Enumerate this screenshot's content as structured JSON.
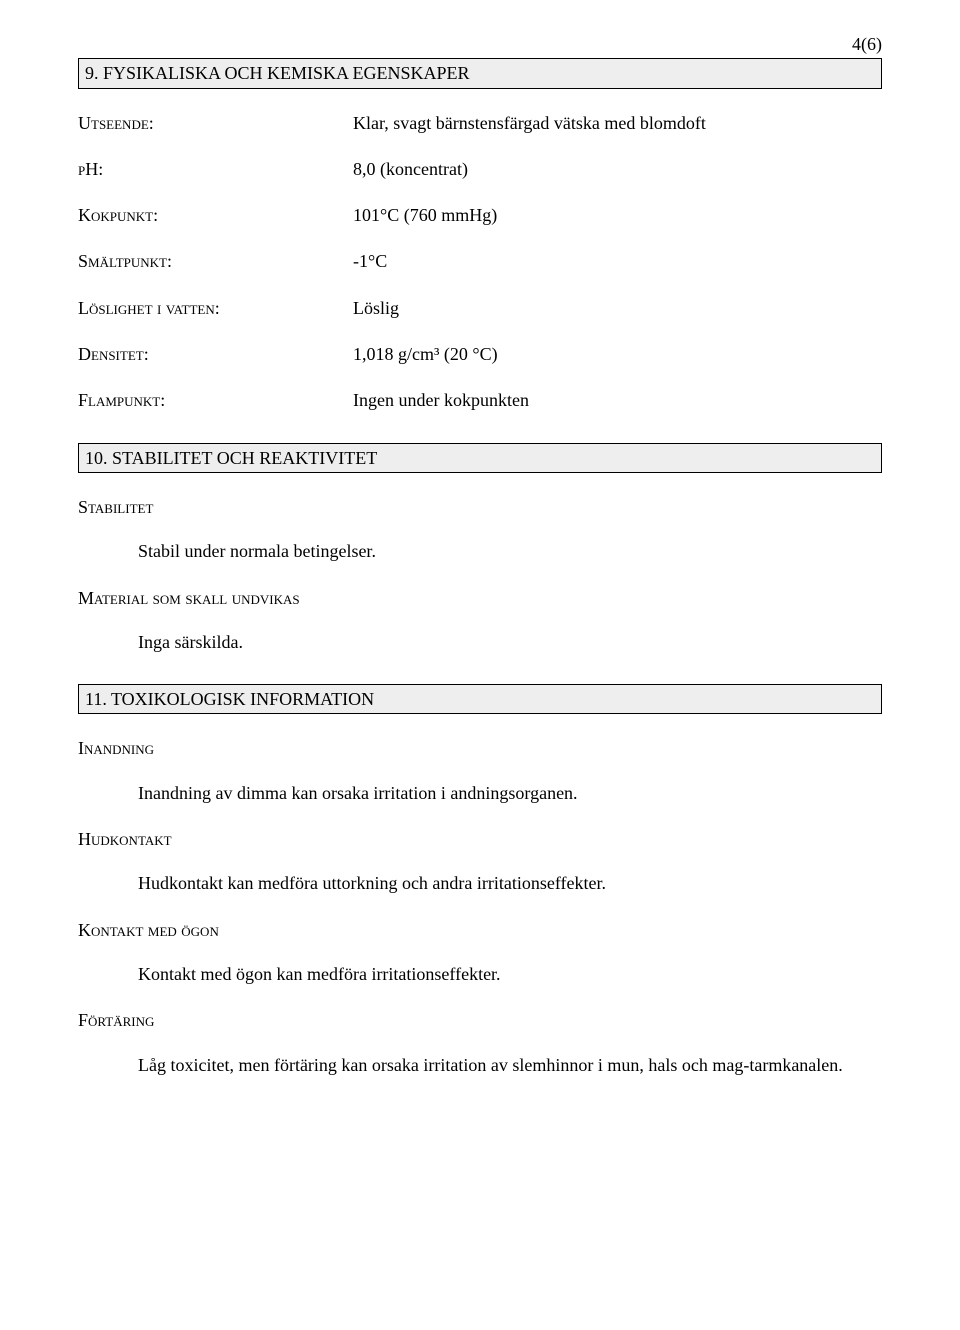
{
  "page_number": "4(6)",
  "section9": {
    "title": "9. FYSIKALISKA OCH KEMISKA EGENSKAPER",
    "rows": [
      {
        "label": "Utseende:",
        "value": "Klar, svagt bärnstensfärgad vätska med blomdoft"
      },
      {
        "label": "pH:",
        "value": "8,0  (koncentrat)"
      },
      {
        "label": "Kokpunkt:",
        "value": "101°C  (760 mmHg)"
      },
      {
        "label": "Smältpunkt:",
        "value": "-1°C"
      },
      {
        "label": "Löslighet i vatten:",
        "value": "Löslig"
      },
      {
        "label": "Densitet:",
        "value": "1,018 g/cm³ (20 °C)"
      },
      {
        "label": "Flampunkt:",
        "value": "Ingen under kokpunkten"
      }
    ]
  },
  "section10": {
    "title": "10. STABILITET OCH REAKTIVITET",
    "stability_heading": "Stabilitet",
    "stability_text": "Stabil under normala betingelser.",
    "avoid_heading": "Material som skall undvikas",
    "avoid_text": "Inga särskilda."
  },
  "section11": {
    "title": "11. TOXIKOLOGISK INFORMATION",
    "inhalation_heading": "Inandning",
    "inhalation_text": "Inandning av dimma kan orsaka irritation i andningsorganen.",
    "skin_heading": "Hudkontakt",
    "skin_text": "Hudkontakt kan medföra uttorkning och andra irritationseffekter.",
    "eye_heading": "Kontakt med ögon",
    "eye_text": "Kontakt med ögon kan medföra irritationseffekter.",
    "ingestion_heading": "Förtäring",
    "ingestion_text": "Låg toxicitet, men förtäring kan orsaka irritation av slemhinnor i mun, hals och mag-tarmkanalen."
  }
}
